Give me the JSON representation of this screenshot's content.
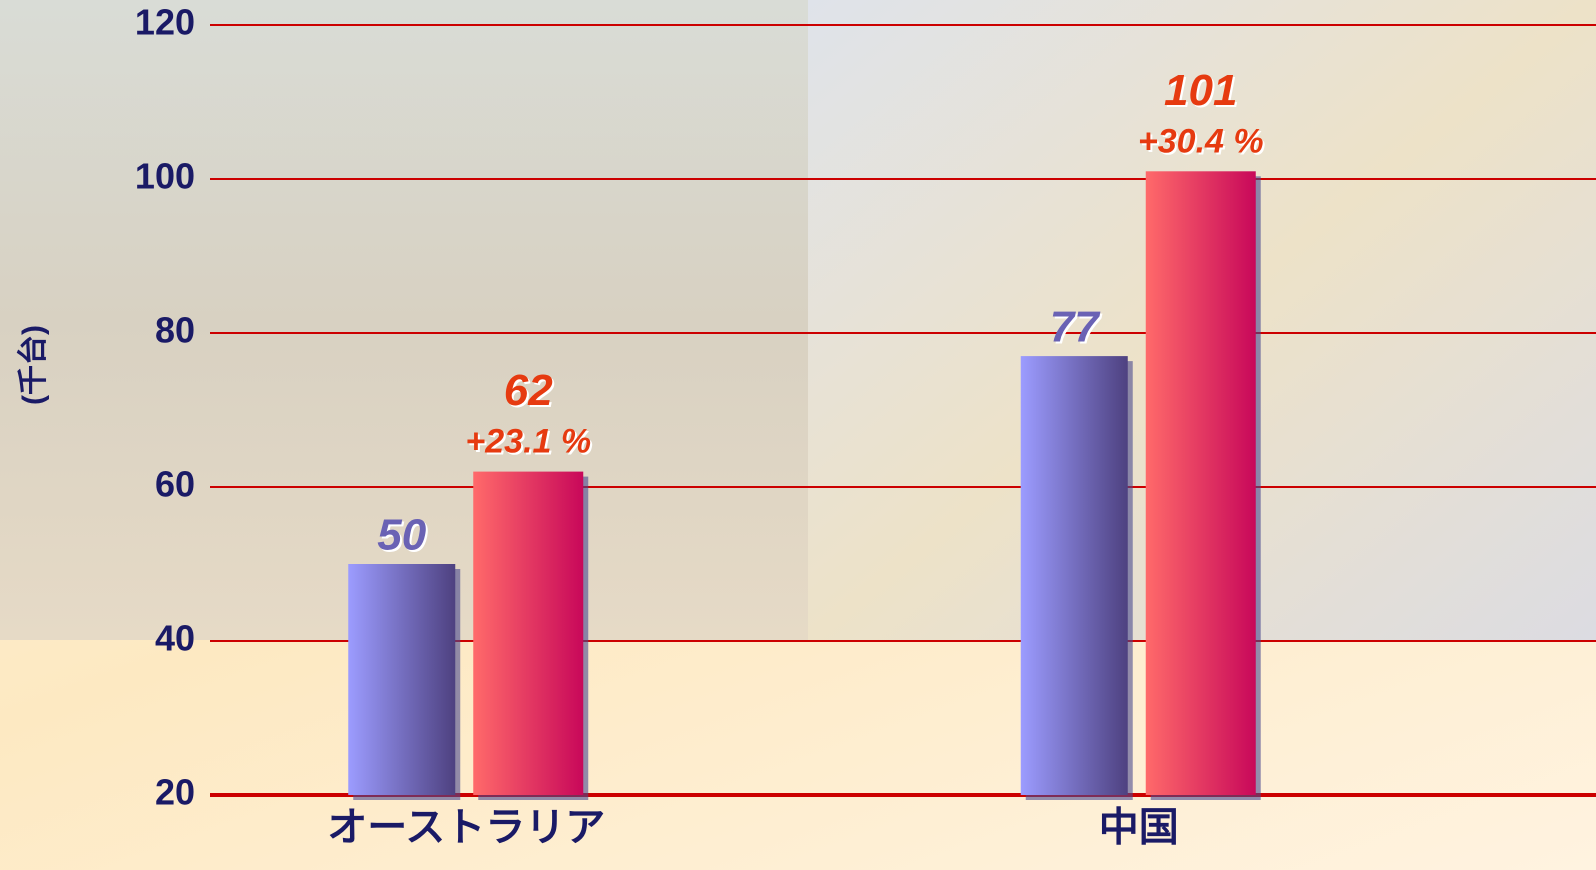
{
  "chart_data": {
    "type": "bar",
    "y_label": "(千台)",
    "categories": [
      "オーストラリア",
      "中国"
    ],
    "series": [
      {
        "color": "#8c8cf0",
        "values": [
          50,
          77
        ]
      },
      {
        "color": "#f0505f",
        "values": [
          62,
          101
        ]
      }
    ],
    "annotations": [
      "+23.1 %",
      "+30.4 %"
    ],
    "ylim": [
      20,
      120
    ],
    "yticks": [
      20,
      40,
      60,
      80,
      100,
      120
    ],
    "grid": true
  }
}
